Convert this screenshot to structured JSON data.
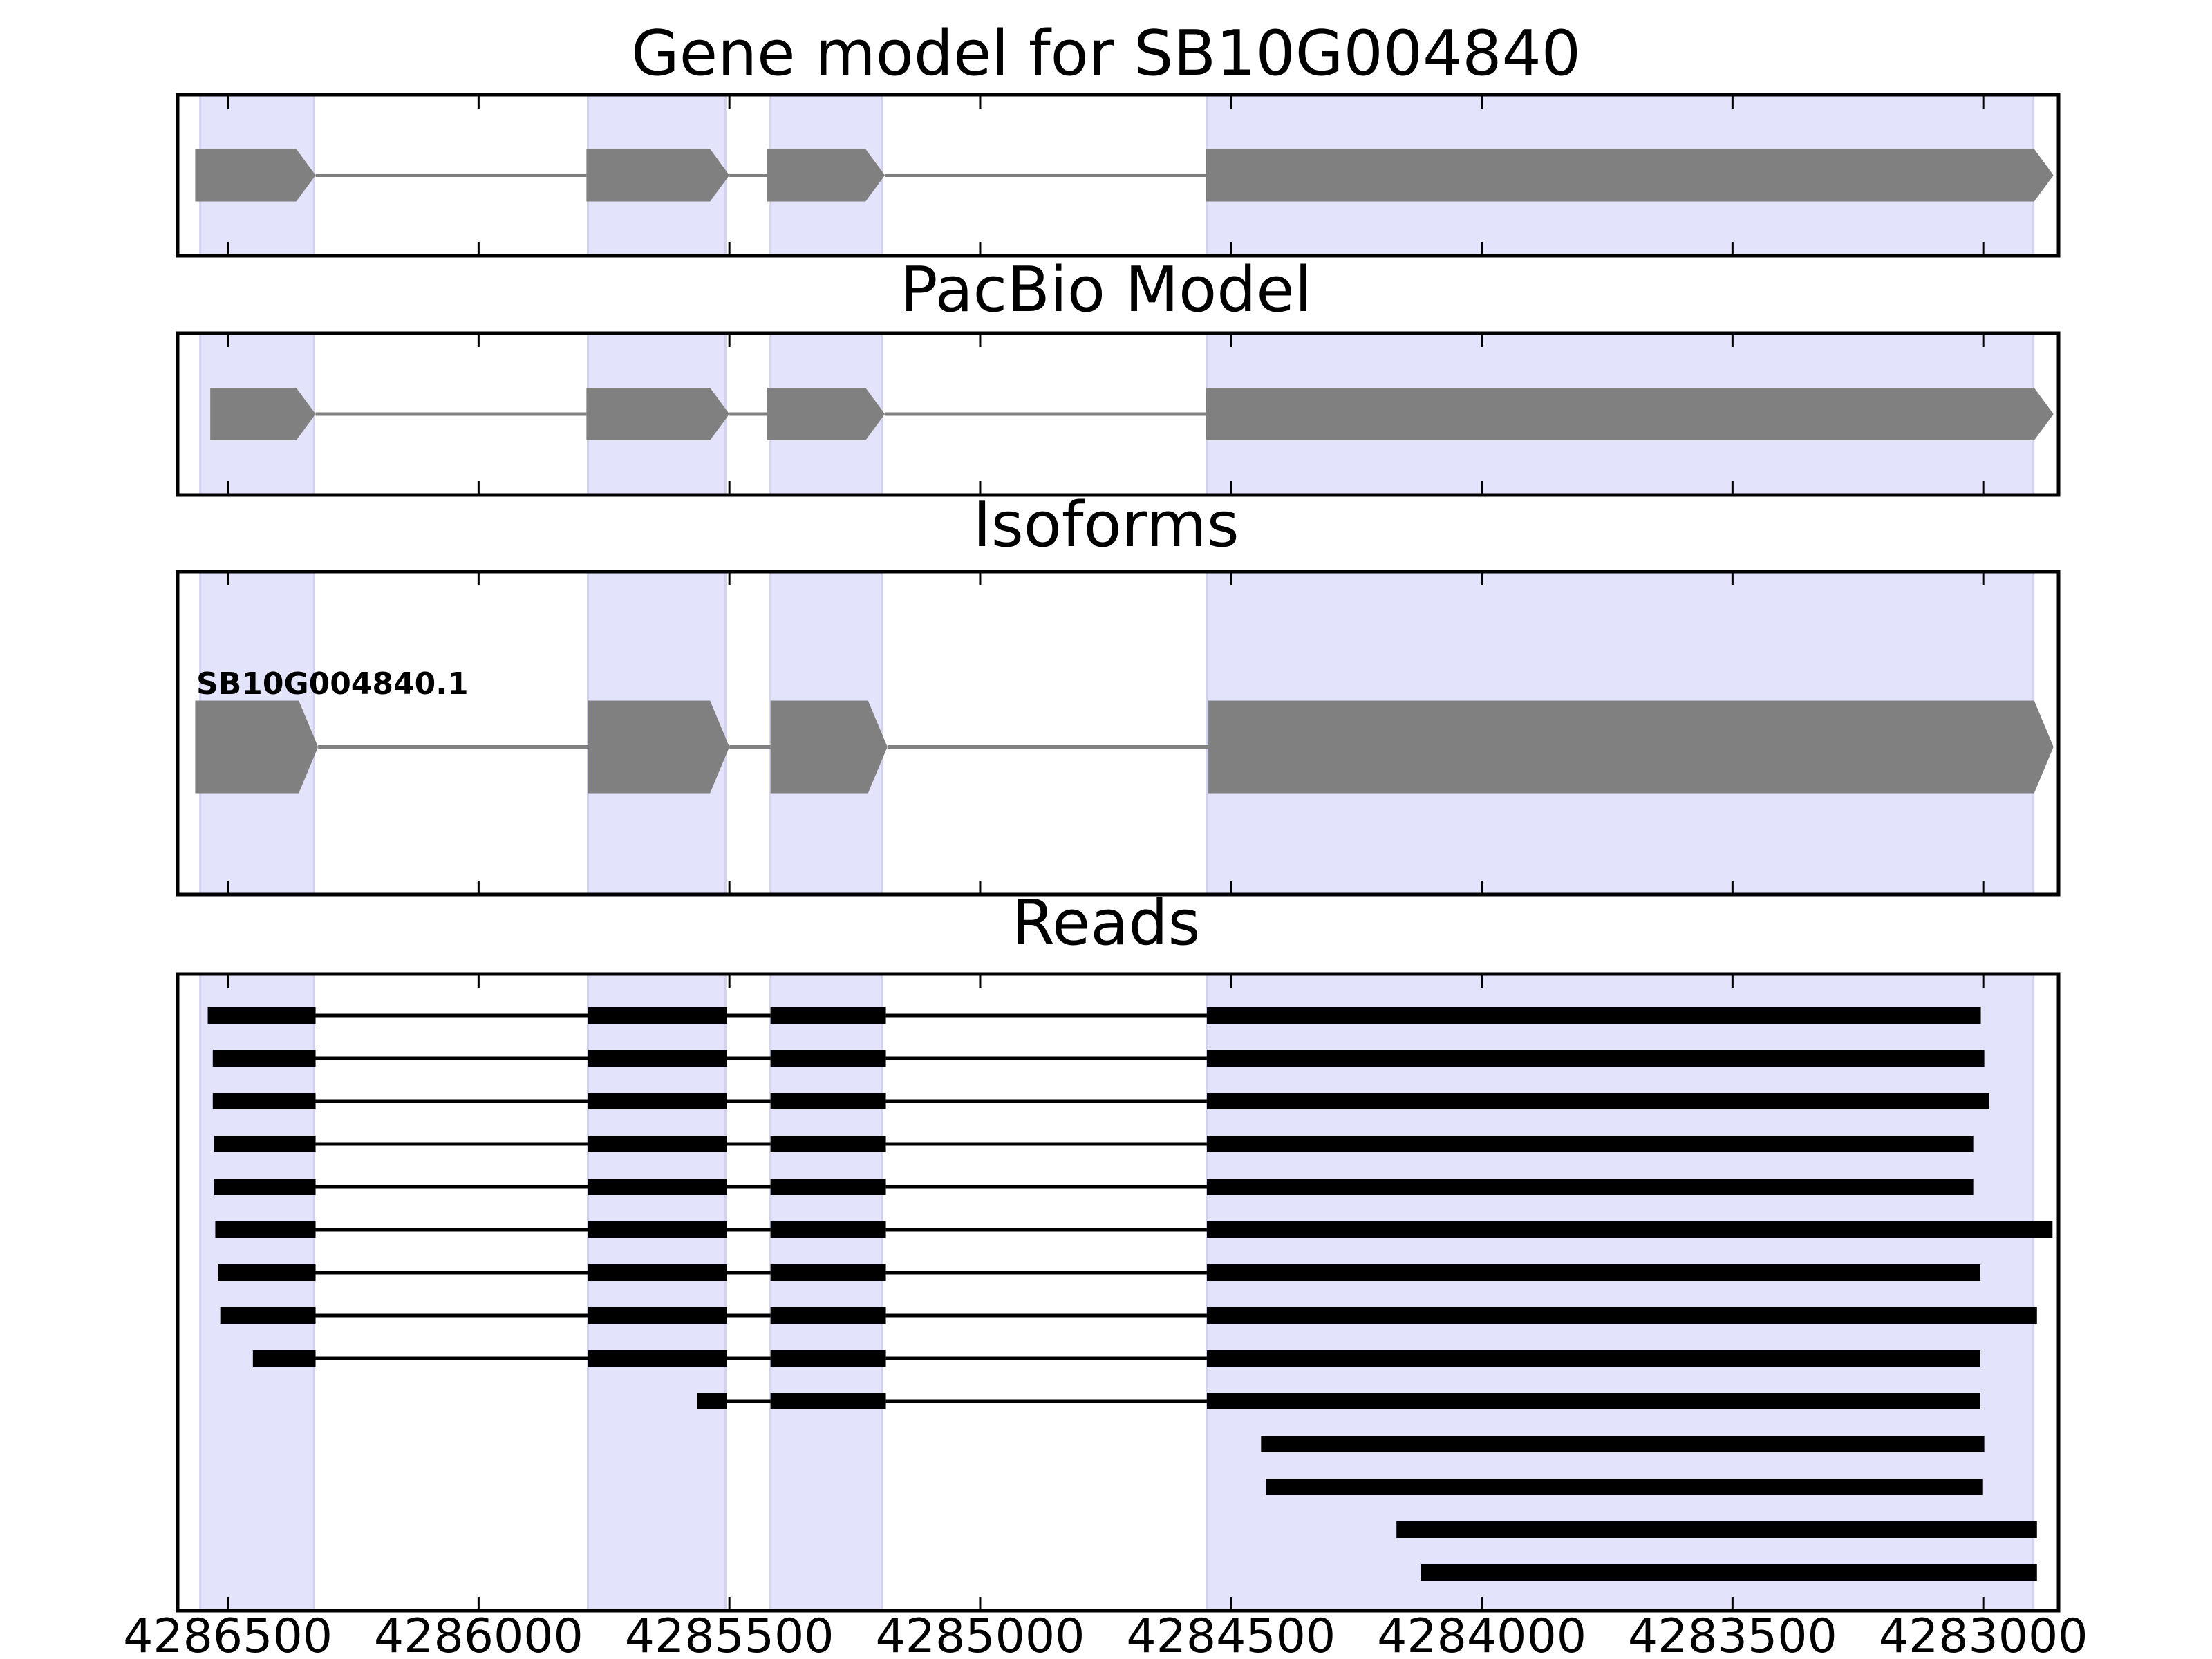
{
  "chart_data": {
    "type": "gene-track",
    "xaxis": {
      "reversed": true,
      "range": [
        4286600,
        4282850
      ],
      "ticks": [
        4286500,
        4286000,
        4285500,
        4285000,
        4284500,
        4284000,
        4283500,
        4283000
      ],
      "tick_labels": [
        "4286500",
        "4286000",
        "4285500",
        "4285000",
        "4284500",
        "4284000",
        "4283500",
        "4283000"
      ]
    },
    "exon_regions": [
      [
        4286555,
        4286328
      ],
      [
        4285782,
        4285508
      ],
      [
        4285418,
        4285196
      ],
      [
        4284548,
        4282900
      ]
    ],
    "colors": {
      "exon_shade": "#e3e3fc",
      "gene_feature": "#808080",
      "read": "#000000"
    },
    "panels": [
      {
        "title": "Gene model for SB10G004840",
        "features": [
          {
            "exons": [
              [
                4286565,
                4286325
              ],
              [
                4285785,
                4285500
              ],
              [
                4285425,
                4285190
              ],
              [
                4284550,
                4282860
              ]
            ]
          }
        ]
      },
      {
        "title": "PacBio Model",
        "features": [
          {
            "exons": [
              [
                4286535,
                4286325
              ],
              [
                4285785,
                4285500
              ],
              [
                4285425,
                4285190
              ],
              [
                4284550,
                4282860
              ]
            ]
          }
        ]
      },
      {
        "title": "Isoforms",
        "features": [
          {
            "label": "SB10G004840.1",
            "exons": [
              [
                4286565,
                4286320
              ],
              [
                4285782,
                4285500
              ],
              [
                4285418,
                4285185
              ],
              [
                4284545,
                4282860
              ]
            ]
          }
        ]
      },
      {
        "title": "Reads",
        "reads": [
          [
            [
              4286540,
              4286325
            ],
            [
              4285782,
              4285505
            ],
            [
              4285418,
              4285188
            ],
            [
              4284548,
              4283005
            ]
          ],
          [
            [
              4286530,
              4286325
            ],
            [
              4285782,
              4285505
            ],
            [
              4285418,
              4285188
            ],
            [
              4284548,
              4282998
            ]
          ],
          [
            [
              4286530,
              4286325
            ],
            [
              4285782,
              4285505
            ],
            [
              4285418,
              4285188
            ],
            [
              4284548,
              4282988
            ]
          ],
          [
            [
              4286527,
              4286325
            ],
            [
              4285782,
              4285505
            ],
            [
              4285418,
              4285188
            ],
            [
              4284548,
              4283020
            ]
          ],
          [
            [
              4286527,
              4286325
            ],
            [
              4285782,
              4285505
            ],
            [
              4285418,
              4285188
            ],
            [
              4284548,
              4283020
            ]
          ],
          [
            [
              4286525,
              4286325
            ],
            [
              4285782,
              4285505
            ],
            [
              4285418,
              4285188
            ],
            [
              4284548,
              4282862
            ]
          ],
          [
            [
              4286520,
              4286325
            ],
            [
              4285782,
              4285505
            ],
            [
              4285418,
              4285188
            ],
            [
              4284548,
              4283006
            ]
          ],
          [
            [
              4286515,
              4286325
            ],
            [
              4285782,
              4285505
            ],
            [
              4285418,
              4285188
            ],
            [
              4284548,
              4282893
            ]
          ],
          [
            [
              4286450,
              4286325
            ],
            [
              4285782,
              4285505
            ],
            [
              4285418,
              4285188
            ],
            [
              4284548,
              4283006
            ]
          ],
          [
            [
              4285565,
              4285505
            ],
            [
              4285418,
              4285188
            ],
            [
              4284548,
              4283006
            ]
          ],
          [
            [
              4284440,
              4282998
            ]
          ],
          [
            [
              4284430,
              4283002
            ]
          ],
          [
            [
              4284170,
              4282893
            ]
          ],
          [
            [
              4284122,
              4282893
            ]
          ]
        ]
      }
    ]
  }
}
